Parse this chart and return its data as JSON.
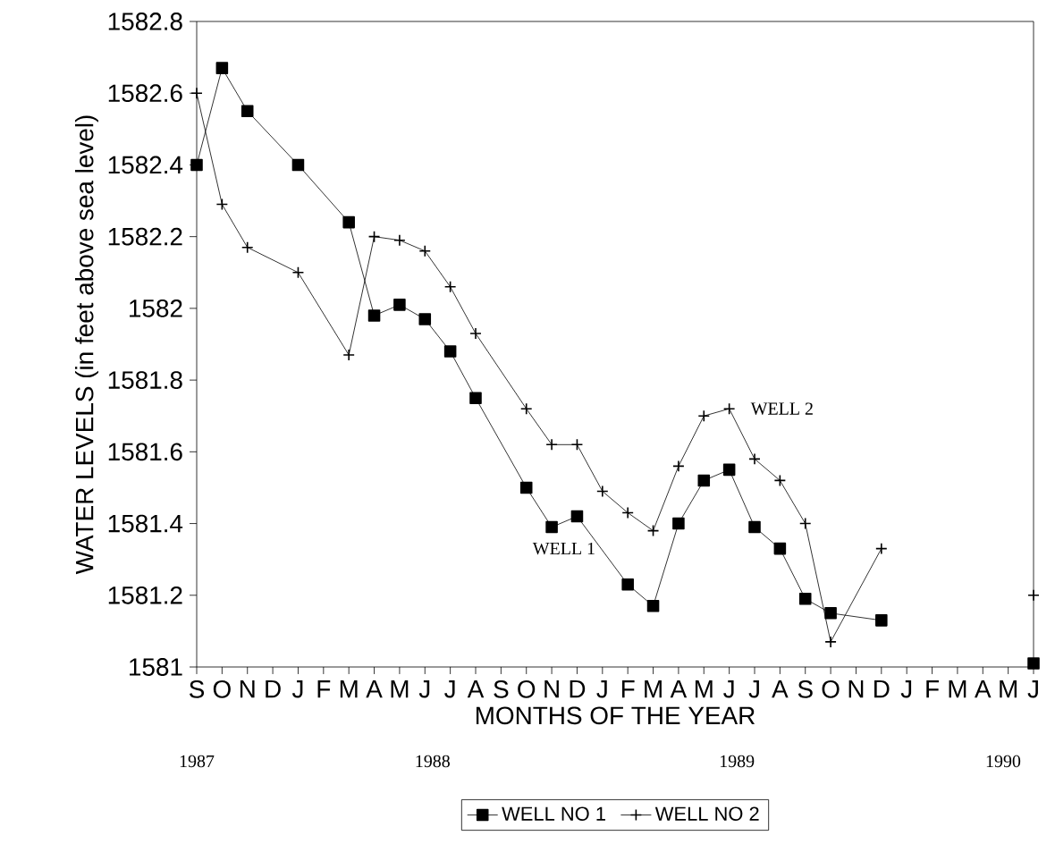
{
  "chart_data": {
    "type": "line",
    "xlabel": "MONTHS OF THE YEAR",
    "ylabel": "WATER LEVELS (in feet above sea level)",
    "categories": [
      "S",
      "O",
      "N",
      "D",
      "J",
      "F",
      "M",
      "A",
      "M",
      "J",
      "J",
      "A",
      "S",
      "O",
      "N",
      "D",
      "J",
      "F",
      "M",
      "A",
      "M",
      "J",
      "J",
      "A",
      "S",
      "O",
      "N",
      "D",
      "J",
      "F",
      "M",
      "A",
      "M",
      "J"
    ],
    "ylim": [
      1581,
      1582.8
    ],
    "yticks": [
      1581,
      1581.2,
      1581.4,
      1581.6,
      1581.8,
      1582,
      1582.2,
      1582.4,
      1582.6,
      1582.8
    ],
    "legend": "bottom",
    "series": [
      {
        "name": "WELL NO 1",
        "color": "#000000",
        "marker": "square",
        "values": [
          1582.4,
          1582.67,
          1582.55,
          null,
          1582.4,
          null,
          1582.24,
          1581.98,
          1582.01,
          1581.97,
          1581.88,
          1581.75,
          null,
          1581.5,
          1581.39,
          1581.42,
          null,
          1581.23,
          1581.17,
          1581.4,
          1581.52,
          1581.55,
          1581.39,
          1581.33,
          1581.19,
          1581.15,
          null,
          1581.13,
          null,
          null,
          null,
          null,
          null,
          null
        ]
      },
      {
        "name": "WELL NO 2",
        "color": "#000000",
        "marker": "cross",
        "values": [
          1582.6,
          1582.29,
          1582.17,
          null,
          1582.1,
          null,
          1581.87,
          1582.2,
          1582.19,
          1582.16,
          1582.06,
          1581.93,
          null,
          1581.72,
          1581.62,
          1581.62,
          1581.49,
          1581.43,
          1581.38,
          1581.56,
          1581.7,
          1581.72,
          1581.58,
          1581.52,
          1581.4,
          1581.07,
          null,
          1581.33,
          null,
          null,
          null,
          null,
          null,
          null
        ]
      },
      {
        "type": "scatter",
        "color": "#000000",
        "marker": "square",
        "values": [
          null,
          null,
          null,
          null,
          null,
          null,
          null,
          null,
          null,
          null,
          null,
          null,
          null,
          null,
          null,
          null,
          null,
          null,
          null,
          null,
          null,
          null,
          null,
          null,
          null,
          null,
          null,
          null,
          null,
          null,
          null,
          null,
          null,
          1581.01
        ]
      },
      {
        "type": "scatter",
        "color": "#000000",
        "marker": "cross",
        "values": [
          null,
          null,
          null,
          null,
          null,
          null,
          null,
          null,
          null,
          null,
          null,
          null,
          null,
          null,
          null,
          null,
          null,
          null,
          null,
          null,
          null,
          null,
          null,
          null,
          null,
          null,
          null,
          null,
          null,
          null,
          null,
          null,
          null,
          1581.2
        ]
      }
    ],
    "annotations": [
      "WELL 1",
      "WELL 2",
      "1987",
      "1988",
      "1989",
      "1990"
    ]
  }
}
